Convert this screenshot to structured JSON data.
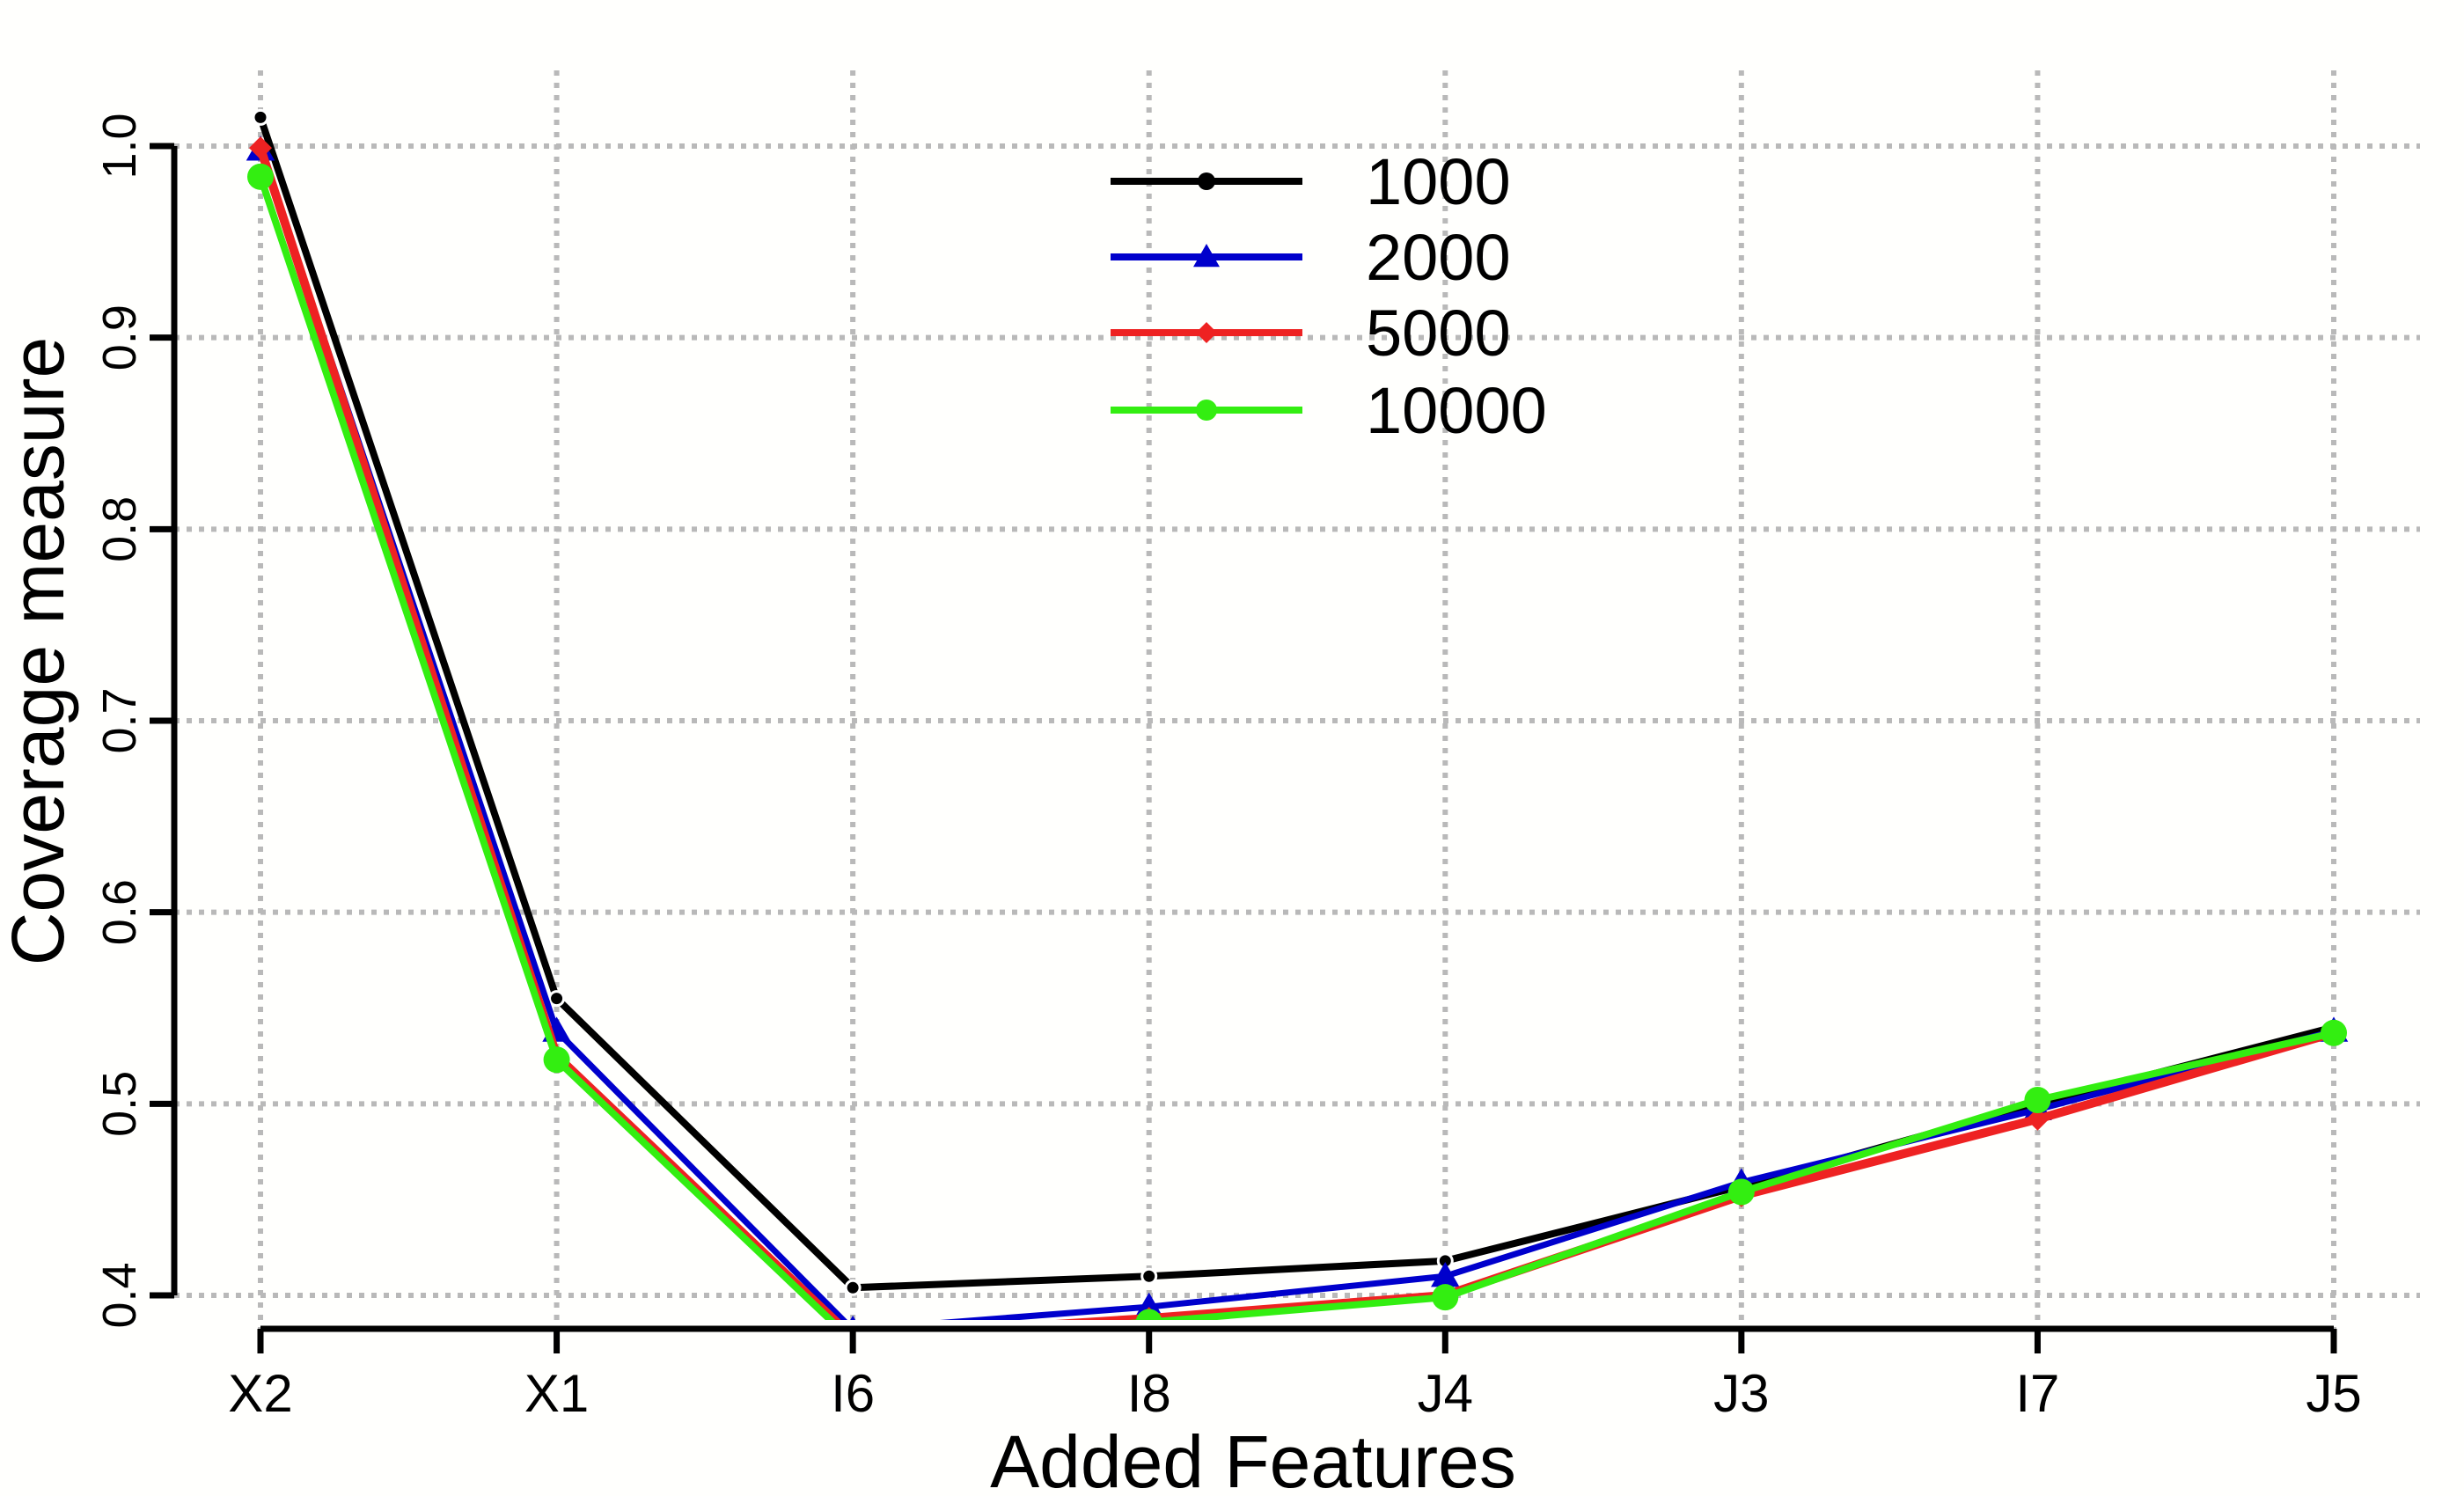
{
  "chart_data": {
    "type": "line",
    "title": "",
    "xlabel": "Added Features",
    "ylabel": "Coverage measure",
    "categories": [
      "X2",
      "X1",
      "I6",
      "I8",
      "J4",
      "J3",
      "I7",
      "J5"
    ],
    "ylim": [
      0.4,
      1.0
    ],
    "yticks": [
      "0.4",
      "0.5",
      "0.6",
      "0.7",
      "0.8",
      "0.9",
      "1.0"
    ],
    "grid": true,
    "legend_position": "top-center",
    "series": [
      {
        "name": "1000",
        "color": "#000000",
        "marker": "circle",
        "values": [
          1.015,
          0.555,
          0.404,
          0.41,
          0.418,
          0.457,
          0.5,
          0.54
        ]
      },
      {
        "name": "2000",
        "color": "#0000cc",
        "marker": "triangle",
        "values": [
          0.998,
          0.538,
          0.382,
          0.394,
          0.41,
          0.459,
          0.497,
          0.538
        ]
      },
      {
        "name": "5000",
        "color": "#ee2222",
        "marker": "diamond",
        "values": [
          0.999,
          0.525,
          0.378,
          0.388,
          0.4,
          0.452,
          0.492,
          0.537
        ]
      },
      {
        "name": "10000",
        "color": "#33ee11",
        "marker": "circle",
        "values": [
          0.984,
          0.523,
          0.376,
          0.386,
          0.399,
          0.454,
          0.502,
          0.537
        ]
      }
    ]
  }
}
